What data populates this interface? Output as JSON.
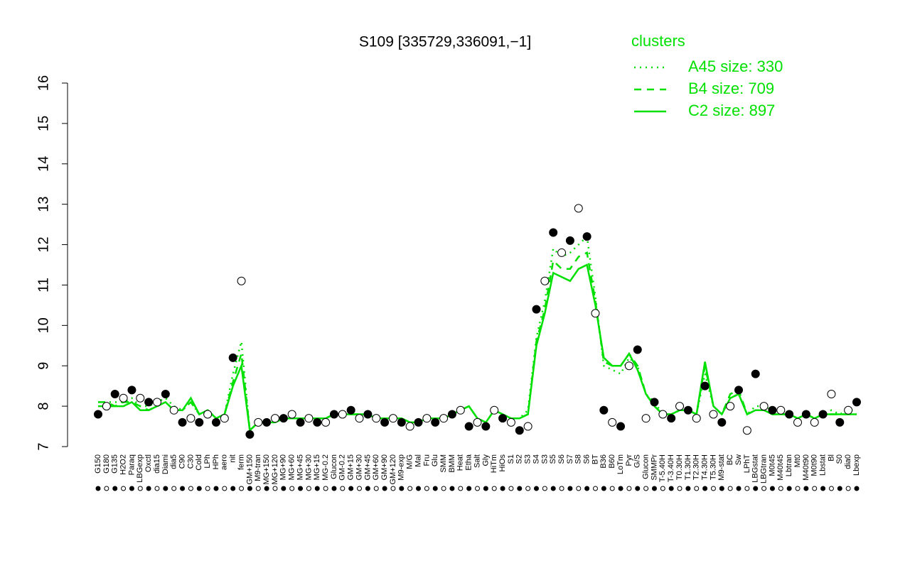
{
  "chart_data": {
    "type": "line",
    "title": "S109 [335729,336091,−1]",
    "legend_title": "clusters",
    "legend_position": "top-right",
    "marker_color": "#000000",
    "ylim": [
      7,
      16
    ],
    "yticks": [
      7,
      8,
      9,
      10,
      11,
      12,
      13,
      14,
      15,
      16
    ],
    "categories": [
      "G150",
      "G180",
      "G135",
      "H2O2",
      "Paraq",
      "LBGexp",
      "Oxctl",
      "dia15",
      "Diami",
      "dia5",
      "C90",
      "C30",
      "Cold",
      "LPh",
      "HPh",
      "aero",
      "nit",
      "ferm",
      "GM+150",
      "M9-tran",
      "MG+150",
      "MG+120",
      "MG+90",
      "MG+60",
      "MG+45",
      "MG+30",
      "MG+15",
      "MG-0.2",
      "Glucon",
      "GM-0.2",
      "GM+15",
      "GM+30",
      "GM+45",
      "GM+60",
      "GM+90",
      "GM+120",
      "M9-exp",
      "M/G",
      "Mal",
      "Fru",
      "Glu",
      "SMM",
      "BMM",
      "Heat",
      "Etha",
      "Salt",
      "Gly",
      "HiTm",
      "HiOs",
      "S1",
      "S2",
      "S3",
      "S4",
      "S3",
      "S5",
      "S6",
      "S7",
      "S8",
      "S6",
      "BT",
      "B36",
      "B60",
      "LoTm",
      "Pyr",
      "G/S",
      "Glucon",
      "SMMPr",
      "T-5.40H",
      "T-3.40H",
      "T0.30H",
      "T1.30H",
      "T2.30H",
      "T4.30H",
      "T5.30H",
      "M9-stat",
      "BC",
      "Sw",
      "LPhT",
      "LBGstat",
      "LBGtran",
      "M0t45",
      "M40t45",
      "Lbtran",
      "Mt0",
      "M40t90",
      "M0t90",
      "Lbstat",
      "Bl",
      "S0",
      "dia0",
      "Lbexp"
    ],
    "values": [
      7.8,
      8.0,
      8.3,
      8.2,
      8.4,
      8.2,
      8.1,
      8.1,
      8.3,
      7.9,
      7.6,
      7.7,
      7.6,
      7.8,
      7.6,
      7.7,
      9.2,
      11.1,
      7.3,
      7.6,
      7.6,
      7.7,
      7.7,
      7.8,
      7.6,
      7.7,
      7.6,
      7.6,
      7.8,
      7.8,
      7.9,
      7.7,
      7.8,
      7.7,
      7.6,
      7.7,
      7.6,
      7.5,
      7.6,
      7.7,
      7.6,
      7.7,
      7.8,
      7.9,
      7.5,
      7.6,
      7.5,
      7.9,
      7.7,
      7.6,
      7.4,
      7.5,
      10.4,
      11.1,
      12.3,
      11.8,
      12.1,
      12.9,
      12.2,
      10.3,
      7.9,
      7.6,
      7.5,
      9.0,
      9.4,
      7.7,
      8.1,
      7.8,
      7.7,
      8.0,
      7.9,
      7.7,
      8.5,
      7.8,
      7.6,
      8.0,
      8.4,
      7.4,
      8.8,
      8.0,
      7.9,
      7.9,
      7.8,
      7.6,
      7.8,
      7.6,
      7.8,
      8.3,
      7.6,
      7.9,
      8.1
    ],
    "series": [
      {
        "name": "A45 size: 330",
        "color": "#00e000",
        "dash": "dotted",
        "values": [
          8.1,
          8.1,
          8.1,
          8.1,
          8.2,
          8.0,
          8.0,
          8.1,
          8.2,
          8.0,
          7.9,
          8.1,
          7.8,
          7.9,
          7.7,
          7.8,
          8.8,
          9.6,
          7.4,
          7.6,
          7.6,
          7.6,
          7.7,
          7.7,
          7.7,
          7.7,
          7.7,
          7.7,
          7.8,
          7.8,
          7.8,
          7.8,
          7.8,
          7.7,
          7.7,
          7.7,
          7.7,
          7.6,
          7.6,
          7.7,
          7.7,
          7.7,
          7.8,
          7.9,
          8.0,
          7.7,
          7.6,
          7.9,
          7.8,
          7.7,
          7.7,
          7.9,
          9.7,
          10.6,
          11.9,
          11.7,
          11.8,
          12.0,
          12.2,
          10.7,
          9.0,
          8.9,
          8.8,
          9.2,
          9.0,
          8.3,
          8.1,
          7.8,
          7.8,
          7.9,
          7.9,
          7.8,
          8.8,
          8.0,
          7.8,
          8.2,
          8.3,
          7.8,
          8.0,
          8.0,
          7.9,
          7.8,
          7.8,
          7.7,
          7.8,
          7.7,
          7.8,
          7.9,
          7.8,
          7.9,
          7.9
        ]
      },
      {
        "name": "B4 size: 709",
        "color": "#00e000",
        "dash": "dashed",
        "values": [
          8.1,
          8.1,
          8.0,
          8.1,
          8.1,
          8.0,
          7.9,
          8.0,
          8.1,
          7.9,
          7.9,
          8.1,
          7.8,
          7.9,
          7.7,
          7.8,
          8.6,
          9.3,
          7.4,
          7.6,
          7.6,
          7.6,
          7.7,
          7.7,
          7.7,
          7.7,
          7.7,
          7.7,
          7.8,
          7.8,
          7.8,
          7.8,
          7.8,
          7.7,
          7.7,
          7.7,
          7.7,
          7.6,
          7.6,
          7.7,
          7.7,
          7.7,
          7.8,
          7.9,
          8.0,
          7.7,
          7.6,
          7.9,
          7.8,
          7.7,
          7.7,
          7.8,
          9.6,
          10.4,
          11.6,
          11.4,
          11.4,
          11.7,
          11.8,
          10.6,
          9.1,
          9.0,
          9.0,
          9.3,
          9.0,
          8.3,
          8.0,
          7.8,
          7.8,
          7.9,
          7.9,
          7.8,
          9.0,
          8.0,
          7.8,
          8.3,
          8.4,
          7.8,
          7.9,
          7.9,
          7.8,
          7.8,
          7.8,
          7.7,
          7.8,
          7.7,
          7.8,
          7.8,
          7.8,
          7.8,
          7.8
        ]
      },
      {
        "name": "C2 size: 897",
        "color": "#00e000",
        "dash": "solid",
        "values": [
          8.0,
          8.0,
          8.0,
          8.0,
          8.1,
          7.9,
          7.9,
          8.0,
          8.1,
          7.9,
          7.9,
          8.2,
          7.8,
          7.9,
          7.7,
          7.8,
          8.5,
          9.0,
          7.4,
          7.6,
          7.6,
          7.6,
          7.7,
          7.7,
          7.7,
          7.7,
          7.7,
          7.7,
          7.8,
          7.8,
          7.8,
          7.8,
          7.8,
          7.7,
          7.7,
          7.7,
          7.7,
          7.6,
          7.6,
          7.7,
          7.7,
          7.7,
          7.8,
          7.9,
          8.0,
          7.7,
          7.6,
          7.9,
          7.8,
          7.7,
          7.7,
          7.8,
          9.5,
          10.3,
          11.3,
          11.2,
          11.1,
          11.4,
          11.5,
          10.5,
          9.2,
          9.0,
          9.0,
          9.3,
          8.9,
          8.3,
          8.0,
          7.8,
          7.8,
          7.9,
          7.9,
          7.8,
          9.1,
          8.0,
          7.8,
          8.2,
          8.3,
          7.8,
          7.9,
          7.9,
          7.8,
          7.8,
          7.8,
          7.7,
          7.8,
          7.7,
          7.8,
          7.8,
          7.8,
          7.8,
          7.8
        ]
      }
    ]
  }
}
